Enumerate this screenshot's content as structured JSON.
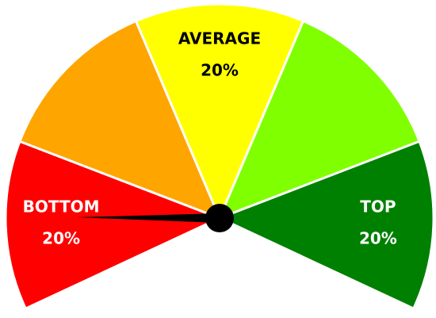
{
  "chart_data": {
    "type": "gauge",
    "categories": [
      "BOTTOM",
      null,
      "AVERAGE",
      null,
      "TOP"
    ],
    "values": [
      20,
      20,
      20,
      20,
      20
    ],
    "value_labels": [
      "20%",
      null,
      "20%",
      null,
      "20%"
    ],
    "colors": [
      "#ff0000",
      "#ffa500",
      "#ffff00",
      "#80ff00",
      "#008000"
    ],
    "label_colors": [
      "#ffffff",
      "#000000",
      "#000000",
      "#000000",
      "#ffffff"
    ],
    "needle": 11,
    "ylim": [
      0,
      100
    ]
  }
}
